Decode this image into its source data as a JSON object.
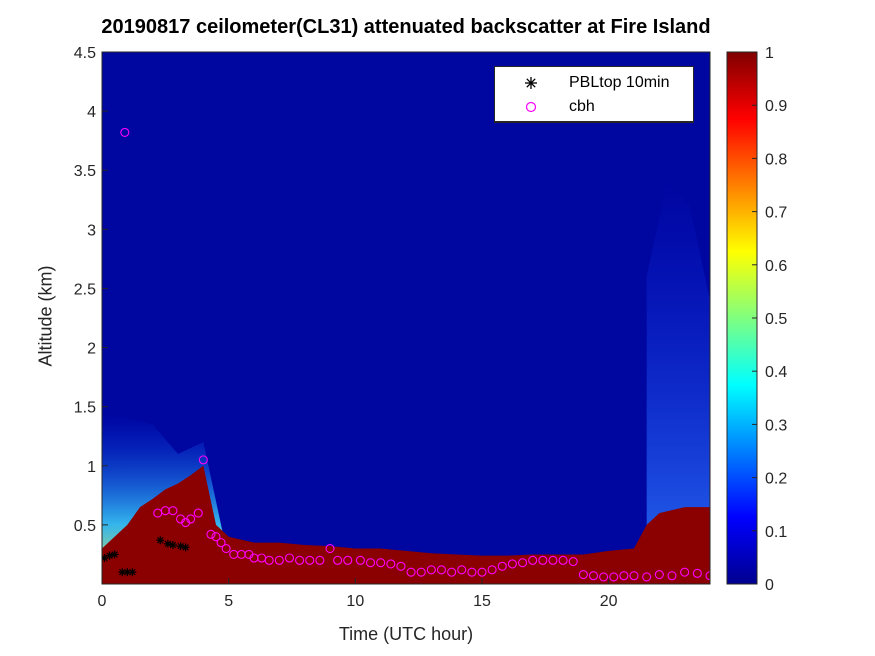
{
  "chart_data": {
    "type": "heatmap",
    "title": "20190817 ceilometer(CL31) attenuated backscatter at Fire Island",
    "xlabel": "Time (UTC hour)",
    "ylabel": "Altitude (km)",
    "xlim": [
      0,
      24
    ],
    "ylim": [
      0,
      4.5
    ],
    "x_ticks": [
      0,
      5,
      10,
      15,
      20
    ],
    "y_ticks": [
      0.5,
      1,
      1.5,
      2,
      2.5,
      3,
      3.5,
      4,
      4.5
    ],
    "y_tick_labels": [
      "0.5",
      "1",
      "1.5",
      "2",
      "2.5",
      "3",
      "3.5",
      "4",
      "4.5"
    ],
    "colorbar": {
      "colormap": "jet",
      "range": [
        0,
        1
      ],
      "ticks": [
        0,
        0.1,
        0.2,
        0.3,
        0.4,
        0.5,
        0.6,
        0.7,
        0.8,
        0.9,
        1
      ],
      "tick_labels": [
        "0",
        "0.1",
        "0.2",
        "0.3",
        "0.4",
        "0.5",
        "0.6",
        "0.7",
        "0.8",
        "0.9",
        "1"
      ]
    },
    "legend": {
      "location": "top-right",
      "entries": [
        {
          "label": "PBLtop 10min",
          "marker": "asterisk",
          "color": "#000000"
        },
        {
          "label": "cbh",
          "marker": "circle",
          "color": "#ff00ff"
        }
      ]
    },
    "aerosol_layer_top_km": {
      "x": [
        0,
        1,
        1.5,
        2,
        2.5,
        3,
        3.5,
        4,
        4.5,
        5,
        6,
        7,
        8,
        9,
        10,
        11,
        12,
        13,
        14,
        15,
        16,
        17,
        18,
        19,
        20,
        21,
        21.5,
        22,
        23,
        24
      ],
      "y": [
        0.3,
        0.5,
        0.65,
        0.72,
        0.8,
        0.85,
        0.92,
        1.0,
        0.5,
        0.4,
        0.35,
        0.35,
        0.33,
        0.32,
        0.3,
        0.3,
        0.28,
        0.26,
        0.25,
        0.24,
        0.24,
        0.25,
        0.25,
        0.25,
        0.28,
        0.3,
        0.5,
        0.6,
        0.65,
        0.65
      ]
    },
    "series": [
      {
        "name": "PBLtop 10min",
        "marker": "asterisk",
        "x": [
          0.1,
          0.3,
          0.5,
          0.8,
          1.0,
          1.2,
          2.3,
          2.6,
          2.8,
          3.1,
          3.3
        ],
        "y": [
          0.22,
          0.24,
          0.25,
          0.1,
          0.1,
          0.1,
          0.37,
          0.34,
          0.33,
          0.32,
          0.31
        ]
      },
      {
        "name": "cbh",
        "marker": "circle",
        "x": [
          0.9,
          2.2,
          2.5,
          2.8,
          3.1,
          3.3,
          3.5,
          3.8,
          4.0,
          4.3,
          4.5,
          4.7,
          4.9,
          5.2,
          5.5,
          5.8,
          6.0,
          6.3,
          6.6,
          7.0,
          7.4,
          7.8,
          8.2,
          8.6,
          9.0,
          9.3,
          9.7,
          10.2,
          10.6,
          11.0,
          11.4,
          11.8,
          12.2,
          12.6,
          13.0,
          13.4,
          13.8,
          14.2,
          14.6,
          15.0,
          15.4,
          15.8,
          16.2,
          16.6,
          17.0,
          17.4,
          17.8,
          18.2,
          18.6,
          19.0,
          19.4,
          19.8,
          20.2,
          20.6,
          21.0,
          21.5,
          22.0,
          22.5,
          23.0,
          23.5,
          24.0
        ],
        "y": [
          3.82,
          0.6,
          0.62,
          0.62,
          0.55,
          0.52,
          0.55,
          0.6,
          1.05,
          0.42,
          0.4,
          0.35,
          0.3,
          0.25,
          0.25,
          0.25,
          0.22,
          0.22,
          0.2,
          0.2,
          0.22,
          0.2,
          0.2,
          0.2,
          0.3,
          0.2,
          0.2,
          0.2,
          0.18,
          0.18,
          0.17,
          0.15,
          0.1,
          0.1,
          0.12,
          0.12,
          0.1,
          0.12,
          0.1,
          0.1,
          0.12,
          0.15,
          0.17,
          0.18,
          0.2,
          0.2,
          0.2,
          0.2,
          0.19,
          0.08,
          0.07,
          0.06,
          0.06,
          0.07,
          0.07,
          0.06,
          0.08,
          0.07,
          0.1,
          0.09,
          0.07
        ]
      }
    ]
  }
}
